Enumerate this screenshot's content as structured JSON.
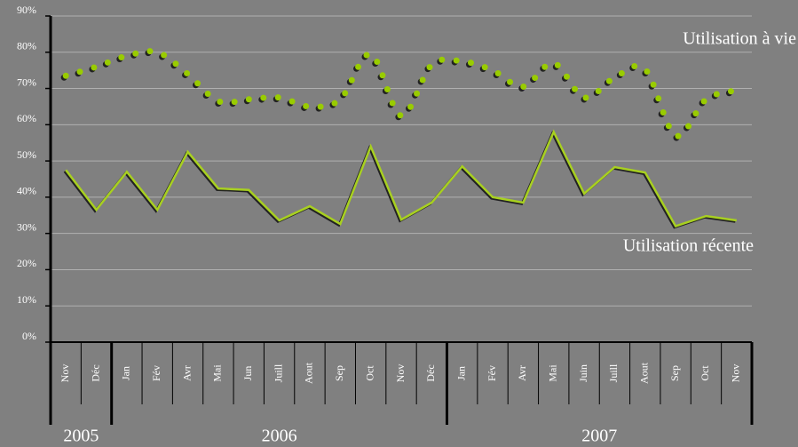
{
  "chart_data": {
    "type": "line",
    "categories": [
      "Nov",
      "Déc",
      "Jan",
      "Fév",
      "Avr",
      "Mai",
      "Jun",
      "Juill",
      "Aout",
      "Sep",
      "Oct",
      "Nov",
      "Déc",
      "Jan",
      "Fév",
      "Avr",
      "Mai",
      "Juin",
      "Juill",
      "Aout",
      "Sep",
      "Oct",
      "Nov"
    ],
    "years": [
      {
        "label": "2005",
        "span": 2
      },
      {
        "label": "2006",
        "span": 11
      },
      {
        "label": "2007",
        "span": 10
      }
    ],
    "series": [
      {
        "name": "Utilisation à vie",
        "color": "#99cc00",
        "style": "dotted",
        "values": [
          73.5,
          76,
          79,
          80,
          74,
          66.5,
          67,
          67.5,
          65,
          67,
          79.5,
          62.5,
          76.5,
          77.5,
          75,
          70.5,
          77,
          67.5,
          73,
          75.3,
          57,
          67,
          69.5
        ]
      },
      {
        "name": "Utilisation récente",
        "color": "#a8d020",
        "style": "solid",
        "values": [
          47.5,
          36.5,
          47,
          36.5,
          52.5,
          42.4,
          42,
          33.6,
          37.5,
          32.6,
          54,
          33.8,
          38.5,
          48.5,
          40,
          38.5,
          58,
          41,
          48.3,
          46.8,
          32,
          34.8,
          33.6
        ]
      }
    ],
    "ylim": [
      0,
      90
    ],
    "yticks": [
      {
        "value": 0,
        "label": "0%"
      },
      {
        "value": 10,
        "label": "10%"
      },
      {
        "value": 20,
        "label": "20%"
      },
      {
        "value": 30,
        "label": "30%"
      },
      {
        "value": 40,
        "label": "40%"
      },
      {
        "value": 50,
        "label": "50%"
      },
      {
        "value": 60,
        "label": "60%"
      },
      {
        "value": 70,
        "label": "70%"
      },
      {
        "value": 80,
        "label": "80%"
      },
      {
        "value": 90,
        "label": "90%"
      }
    ],
    "grid": true
  }
}
